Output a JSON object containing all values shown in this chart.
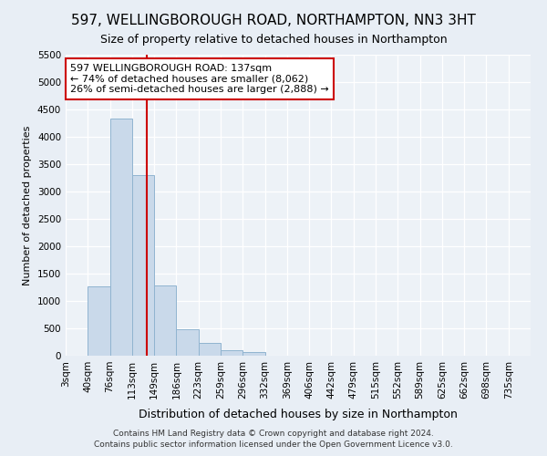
{
  "title": "597, WELLINGBOROUGH ROAD, NORTHAMPTON, NN3 3HT",
  "subtitle": "Size of property relative to detached houses in Northampton",
  "xlabel": "Distribution of detached houses by size in Northampton",
  "ylabel": "Number of detached properties",
  "bin_labels": [
    "3sqm",
    "40sqm",
    "76sqm",
    "113sqm",
    "149sqm",
    "186sqm",
    "223sqm",
    "259sqm",
    "296sqm",
    "332sqm",
    "369sqm",
    "406sqm",
    "442sqm",
    "479sqm",
    "515sqm",
    "552sqm",
    "589sqm",
    "625sqm",
    "662sqm",
    "698sqm",
    "735sqm"
  ],
  "bar_values": [
    0,
    1270,
    4330,
    3300,
    1280,
    490,
    230,
    100,
    60,
    0,
    0,
    0,
    0,
    0,
    0,
    0,
    0,
    0,
    0,
    0,
    0
  ],
  "bar_color": "#c9d9ea",
  "bar_edgecolor": "#90b4d0",
  "bar_linewidth": 0.7,
  "vline_color": "#cc0000",
  "vline_pos": 3.66,
  "annotation_text": "597 WELLINGBOROUGH ROAD: 137sqm\n← 74% of detached houses are smaller (8,062)\n26% of semi-detached houses are larger (2,888) →",
  "annotation_box_color": "#ffffff",
  "annotation_box_edgecolor": "#cc0000",
  "ylim": [
    0,
    5500
  ],
  "yticks": [
    0,
    500,
    1000,
    1500,
    2000,
    2500,
    3000,
    3500,
    4000,
    4500,
    5000,
    5500
  ],
  "bg_color": "#e8eef5",
  "plot_bg_color": "#edf2f7",
  "footer": "Contains HM Land Registry data © Crown copyright and database right 2024.\nContains public sector information licensed under the Open Government Licence v3.0.",
  "title_fontsize": 11,
  "subtitle_fontsize": 9,
  "xlabel_fontsize": 9,
  "ylabel_fontsize": 8,
  "tick_fontsize": 7.5,
  "footer_fontsize": 6.5
}
